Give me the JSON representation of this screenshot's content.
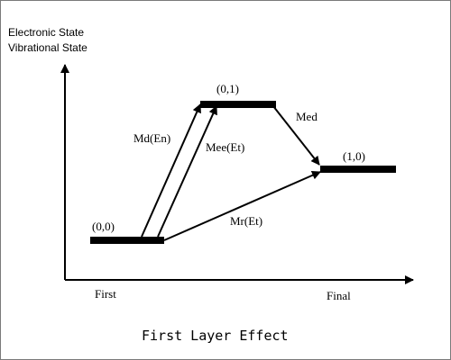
{
  "diagram": {
    "y_axis_label_line1": "Electronic State",
    "y_axis_label_line2": "Vibrational State",
    "x_axis_start_label": "First",
    "x_axis_end_label": "Final",
    "caption": "First Layer Effect",
    "states": [
      {
        "id": "s00",
        "label": "(0,0)"
      },
      {
        "id": "s01",
        "label": "(0,1)"
      },
      {
        "id": "s10",
        "label": "(1,0)"
      }
    ],
    "transitions": [
      {
        "from": "(0,0)",
        "to": "(0,1)",
        "label": "Md(En)"
      },
      {
        "from": "(0,0)",
        "to": "(0,1)",
        "label": "Mee(Et)"
      },
      {
        "from": "(0,1)",
        "to": "(1,0)",
        "label": "Med"
      },
      {
        "from": "(0,0)",
        "to": "(1,0)",
        "label": "Mr(Et)"
      }
    ]
  }
}
